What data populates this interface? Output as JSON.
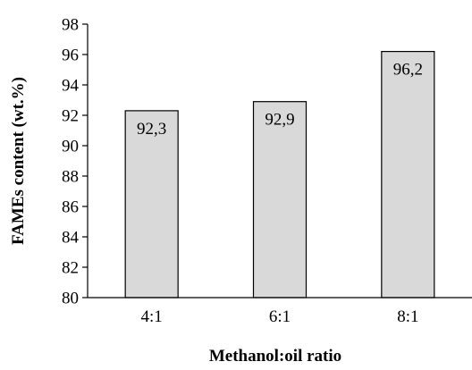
{
  "chart_data": {
    "type": "bar",
    "categories": [
      "4:1",
      "6:1",
      "8:1"
    ],
    "values": [
      92.3,
      92.9,
      96.2
    ],
    "data_labels": [
      "92,3",
      "92,9",
      "96,2"
    ],
    "title": "",
    "xlabel": "Methanol:oil ratio",
    "ylabel": "FAMEs content (wt.%)",
    "ylim": [
      80,
      98
    ],
    "yticks": [
      80,
      82,
      84,
      86,
      88,
      90,
      92,
      94,
      96,
      98
    ],
    "grid": false,
    "legend": "none",
    "colors": {
      "bar_fill": "#d9d9d9",
      "bar_stroke": "#000000",
      "axis": "#000000"
    }
  }
}
